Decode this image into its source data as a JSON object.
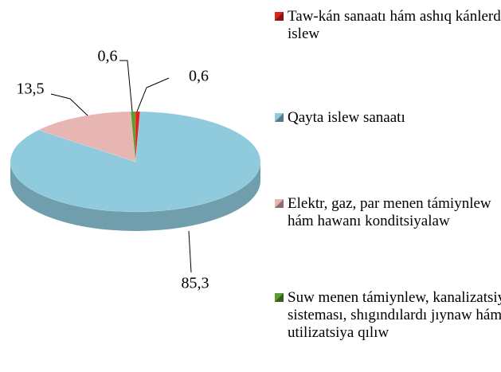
{
  "chart_data": {
    "type": "pie",
    "categories": [
      "Taw-kán sanaatı hám ashıq kánlerdi islew",
      "Qayta islew sanaatı",
      "Elektr, gaz, par menen támiynlew hám hawanı konditsiyalaw",
      "Suw menen támiynlew, kanalizatsiya sisteması, shıgındılardı jıynaw hám utilizatsiya qılıw"
    ],
    "values": [
      0.6,
      85.3,
      13.5,
      0.6
    ],
    "value_labels": [
      "0,6",
      "85,3",
      "13,5",
      "0,6"
    ],
    "colors": [
      "#e0221c",
      "#8fcbdc",
      "#e7b5b2",
      "#5e9c33"
    ],
    "legend": "right"
  }
}
